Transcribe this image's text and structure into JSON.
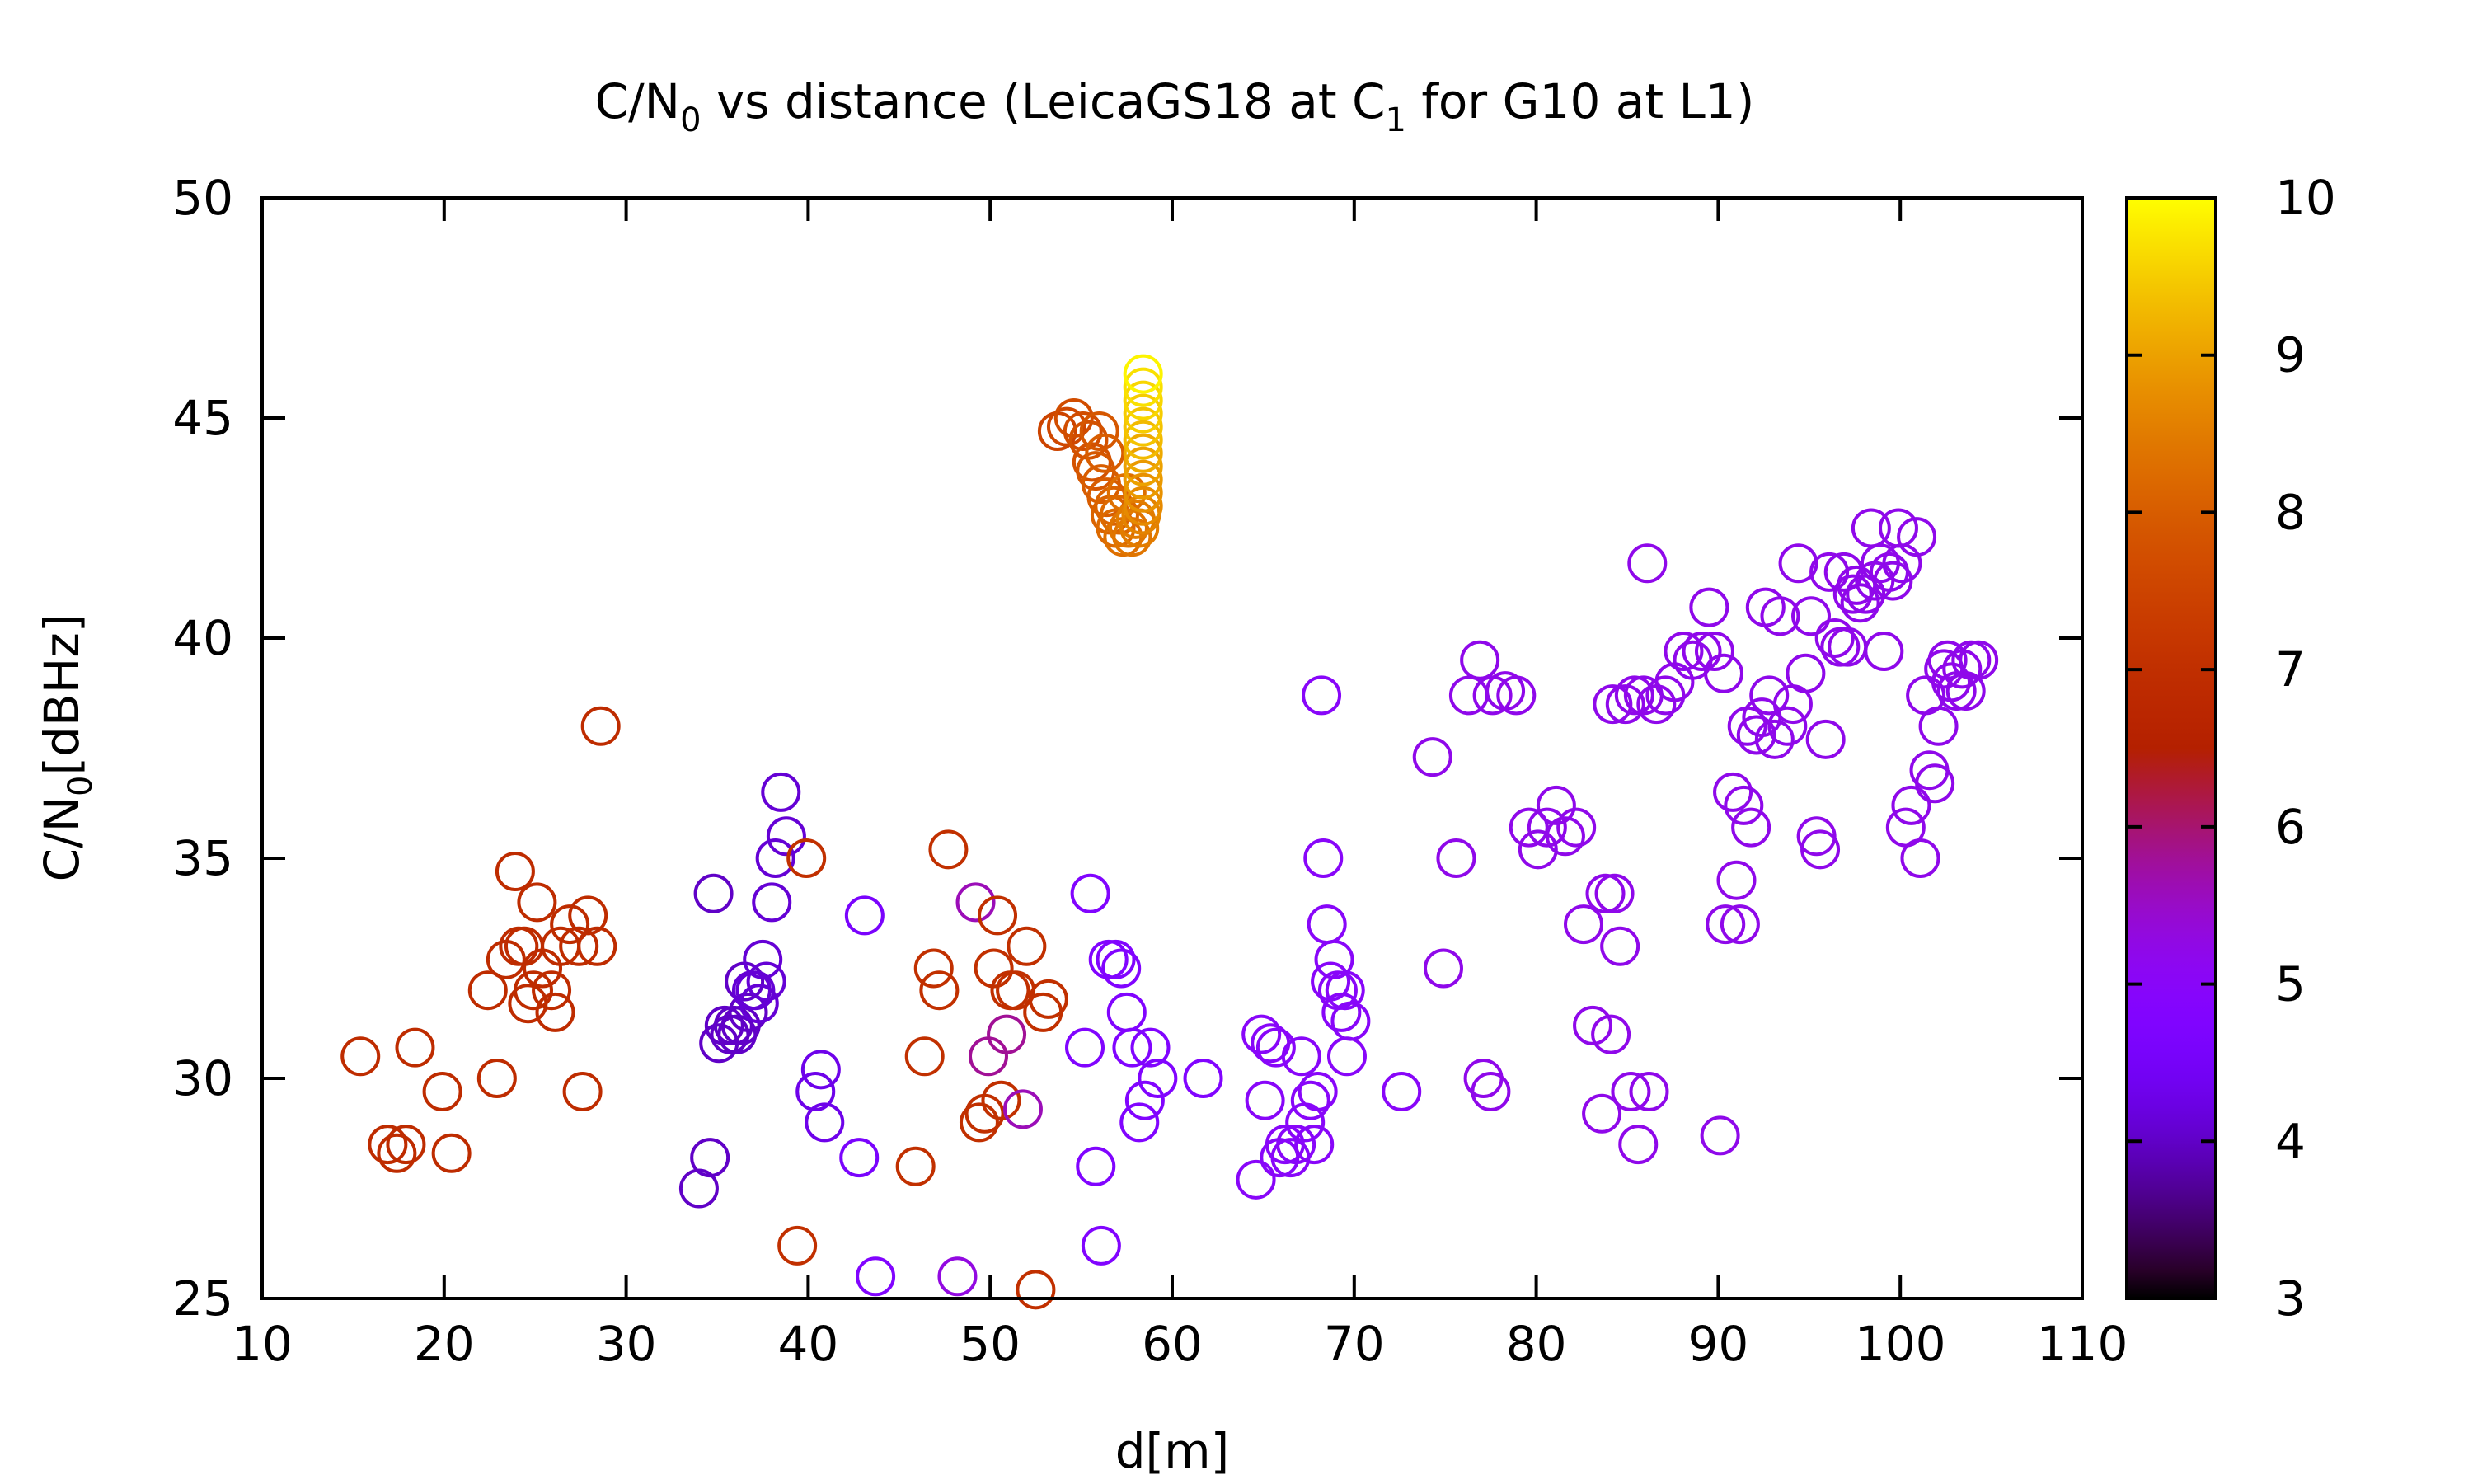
{
  "chart_data": {
    "type": "scatter",
    "title_parts": {
      "a": "C/N",
      "a_sub": "0",
      "b": " vs distance (LeicaGS18 at C",
      "b_sub": "1",
      "c": " for G10 at L1)"
    },
    "xlabel": "d[m]",
    "ylabel_parts": {
      "a": "C/N",
      "a_sub": "0",
      "b": "[dBHz]"
    },
    "xlim": [
      10,
      110
    ],
    "ylim": [
      25,
      50
    ],
    "xticks": [
      "10",
      "20",
      "30",
      "40",
      "50",
      "60",
      "70",
      "80",
      "90",
      "100",
      "110"
    ],
    "yticks": [
      "25",
      "30",
      "35",
      "40",
      "45",
      "50"
    ],
    "colorbar": {
      "range": [
        3,
        10
      ],
      "ticks": [
        "3",
        "4",
        "5",
        "6",
        "7",
        "8",
        "9",
        "10"
      ],
      "palette": "gnuplot"
    },
    "grid": false,
    "marker": "open-circle",
    "points": [
      [
        15.4,
        30.5,
        6.9
      ],
      [
        16.9,
        28.5,
        6.9
      ],
      [
        17.4,
        28.3,
        6.9
      ],
      [
        17.9,
        28.5,
        6.9
      ],
      [
        18.4,
        30.7,
        6.9
      ],
      [
        19.9,
        29.7,
        6.9
      ],
      [
        20.4,
        28.3,
        6.9
      ],
      [
        22.4,
        32.0,
        6.9
      ],
      [
        22.9,
        30.0,
        6.9
      ],
      [
        23.4,
        32.7,
        6.9
      ],
      [
        23.9,
        34.7,
        6.9
      ],
      [
        24.1,
        33.0,
        6.9
      ],
      [
        24.4,
        33.0,
        6.9
      ],
      [
        24.6,
        31.7,
        6.9
      ],
      [
        24.9,
        32.0,
        6.9
      ],
      [
        25.1,
        34.0,
        6.9
      ],
      [
        25.4,
        32.5,
        6.9
      ],
      [
        25.9,
        32.0,
        6.9
      ],
      [
        26.1,
        31.5,
        6.9
      ],
      [
        26.4,
        33.0,
        6.9
      ],
      [
        26.9,
        33.5,
        6.9
      ],
      [
        27.4,
        33.0,
        6.9
      ],
      [
        27.6,
        29.7,
        6.9
      ],
      [
        27.9,
        33.7,
        6.9
      ],
      [
        28.4,
        33.0,
        6.9
      ],
      [
        28.6,
        38.0,
        6.9
      ],
      [
        34.0,
        27.5,
        4.0
      ],
      [
        34.6,
        28.2,
        4.0
      ],
      [
        34.8,
        34.2,
        4.0
      ],
      [
        35.1,
        30.8,
        4.0
      ],
      [
        35.4,
        31.2,
        4.0
      ],
      [
        35.7,
        31.0,
        4.0
      ],
      [
        35.9,
        31.2,
        4.0
      ],
      [
        36.1,
        31.0,
        4.0
      ],
      [
        36.3,
        31.2,
        4.0
      ],
      [
        36.5,
        32.2,
        4.0
      ],
      [
        36.7,
        31.5,
        4.0
      ],
      [
        36.9,
        32.0,
        4.1
      ],
      [
        37.1,
        32.0,
        4.1
      ],
      [
        37.3,
        31.7,
        4.1
      ],
      [
        37.5,
        32.7,
        4.1
      ],
      [
        37.7,
        32.2,
        4.1
      ],
      [
        38.0,
        34.0,
        4.1
      ],
      [
        38.2,
        35.0,
        4.1
      ],
      [
        38.5,
        36.5,
        4.1
      ],
      [
        38.8,
        35.5,
        4.1
      ],
      [
        40.4,
        29.7,
        4.3
      ],
      [
        40.7,
        30.2,
        4.3
      ],
      [
        40.9,
        29.0,
        4.3
      ],
      [
        42.8,
        28.2,
        4.6
      ],
      [
        43.1,
        33.7,
        4.6
      ],
      [
        43.7,
        25.5,
        4.8
      ],
      [
        39.4,
        26.2,
        7.0
      ],
      [
        39.9,
        35.0,
        7.0
      ],
      [
        45.9,
        28.0,
        7.0
      ],
      [
        46.4,
        30.5,
        7.0
      ],
      [
        46.9,
        32.5,
        7.0
      ],
      [
        47.2,
        32.0,
        7.0
      ],
      [
        47.7,
        35.2,
        7.0
      ],
      [
        48.2,
        25.5,
        5.3
      ],
      [
        49.2,
        34.0,
        5.6
      ],
      [
        49.4,
        29.0,
        7.0
      ],
      [
        49.7,
        29.2,
        7.0
      ],
      [
        49.9,
        30.5,
        5.8
      ],
      [
        50.2,
        32.5,
        7.0
      ],
      [
        50.4,
        33.7,
        7.0
      ],
      [
        50.6,
        29.5,
        7.0
      ],
      [
        50.9,
        31.0,
        5.8
      ],
      [
        51.1,
        32.0,
        7.0
      ],
      [
        51.4,
        32.0,
        7.0
      ],
      [
        51.8,
        29.3,
        5.6
      ],
      [
        52.0,
        33.0,
        7.0
      ],
      [
        52.5,
        25.2,
        7.0
      ],
      [
        52.9,
        31.5,
        7.0
      ],
      [
        53.2,
        31.8,
        7.0
      ],
      [
        55.2,
        30.7,
        4.8
      ],
      [
        55.5,
        34.2,
        4.8
      ],
      [
        55.8,
        28.0,
        4.8
      ],
      [
        56.1,
        26.2,
        4.8
      ],
      [
        56.5,
        32.7,
        4.8
      ],
      [
        56.9,
        32.7,
        4.8
      ],
      [
        57.2,
        32.5,
        4.8
      ],
      [
        57.5,
        31.5,
        4.8
      ],
      [
        57.8,
        30.7,
        4.8
      ],
      [
        58.2,
        29.0,
        4.8
      ],
      [
        58.5,
        29.5,
        4.8
      ],
      [
        58.8,
        30.7,
        4.8
      ],
      [
        59.2,
        30.0,
        4.8
      ],
      [
        61.7,
        30.0,
        4.8
      ],
      [
        64.6,
        27.7,
        5.0
      ],
      [
        64.9,
        31.0,
        5.0
      ],
      [
        65.1,
        29.5,
        5.0
      ],
      [
        65.4,
        30.8,
        5.0
      ],
      [
        65.7,
        30.7,
        5.0
      ],
      [
        65.9,
        28.2,
        5.0
      ],
      [
        66.2,
        28.5,
        5.0
      ],
      [
        66.5,
        28.2,
        5.0
      ],
      [
        66.8,
        28.5,
        5.0
      ],
      [
        67.1,
        30.5,
        5.0
      ],
      [
        67.3,
        29.0,
        5.0
      ],
      [
        67.6,
        29.5,
        5.0
      ],
      [
        67.8,
        28.5,
        5.0
      ],
      [
        68.0,
        29.7,
        5.0
      ],
      [
        68.2,
        38.7,
        5.0
      ],
      [
        68.3,
        35.0,
        5.0
      ],
      [
        68.5,
        33.5,
        5.0
      ],
      [
        68.7,
        32.2,
        5.0
      ],
      [
        68.9,
        32.7,
        5.0
      ],
      [
        69.1,
        32.0,
        5.0
      ],
      [
        69.3,
        31.5,
        5.0
      ],
      [
        69.5,
        32.0,
        5.0
      ],
      [
        69.6,
        30.5,
        5.0
      ],
      [
        69.8,
        31.3,
        5.0
      ],
      [
        72.6,
        29.7,
        5.0
      ],
      [
        74.3,
        37.3,
        5.2
      ],
      [
        74.9,
        32.5,
        5.2
      ],
      [
        75.6,
        35.0,
        5.2
      ],
      [
        76.3,
        38.7,
        5.2
      ],
      [
        76.9,
        39.5,
        5.2
      ],
      [
        77.1,
        30.0,
        5.2
      ],
      [
        77.5,
        29.7,
        5.2
      ],
      [
        77.6,
        38.7,
        5.2
      ],
      [
        78.3,
        38.8,
        5.2
      ],
      [
        78.9,
        38.7,
        5.2
      ],
      [
        79.6,
        35.7,
        5.2
      ],
      [
        80.1,
        35.2,
        5.2
      ],
      [
        80.6,
        35.7,
        5.2
      ],
      [
        81.1,
        36.2,
        5.2
      ],
      [
        81.6,
        35.5,
        5.2
      ],
      [
        82.2,
        35.7,
        5.2
      ],
      [
        82.6,
        33.5,
        5.2
      ],
      [
        83.1,
        31.2,
        5.2
      ],
      [
        83.6,
        29.2,
        5.2
      ],
      [
        83.8,
        34.2,
        5.2
      ],
      [
        84.1,
        31.0,
        5.2
      ],
      [
        84.3,
        34.2,
        5.2
      ],
      [
        84.6,
        33.0,
        5.2
      ],
      [
        84.2,
        38.5,
        5.2
      ],
      [
        84.9,
        38.5,
        5.2
      ],
      [
        85.2,
        29.7,
        5.2
      ],
      [
        85.6,
        28.5,
        5.2
      ],
      [
        85.4,
        38.7,
        5.2
      ],
      [
        85.9,
        38.7,
        5.2
      ],
      [
        86.1,
        41.7,
        5.2
      ],
      [
        86.2,
        29.7,
        5.2
      ],
      [
        86.6,
        38.5,
        5.2
      ],
      [
        87.1,
        38.7,
        5.2
      ],
      [
        87.6,
        39.0,
        5.2
      ],
      [
        88.1,
        39.7,
        5.2
      ],
      [
        88.6,
        39.5,
        5.2
      ],
      [
        89.1,
        39.7,
        5.2
      ],
      [
        89.5,
        40.7,
        5.2
      ],
      [
        89.8,
        39.7,
        5.2
      ],
      [
        90.1,
        28.7,
        5.2
      ],
      [
        90.3,
        39.2,
        5.2
      ],
      [
        90.4,
        33.5,
        5.2
      ],
      [
        90.8,
        36.5,
        5.2
      ],
      [
        91.0,
        34.5,
        5.2
      ],
      [
        91.2,
        33.5,
        5.2
      ],
      [
        91.4,
        36.2,
        5.2
      ],
      [
        91.6,
        38.0,
        5.2
      ],
      [
        91.8,
        35.7,
        5.2
      ],
      [
        92.1,
        37.8,
        5.2
      ],
      [
        92.4,
        38.2,
        5.2
      ],
      [
        92.6,
        40.7,
        5.2
      ],
      [
        92.8,
        38.7,
        5.2
      ],
      [
        93.1,
        37.7,
        5.2
      ],
      [
        93.4,
        40.5,
        5.2
      ],
      [
        93.8,
        38.0,
        5.2
      ],
      [
        94.1,
        38.5,
        5.2
      ],
      [
        94.4,
        41.7,
        5.2
      ],
      [
        94.8,
        39.2,
        5.2
      ],
      [
        95.1,
        40.5,
        5.2
      ],
      [
        95.4,
        35.5,
        5.2
      ],
      [
        95.6,
        35.2,
        5.2
      ],
      [
        95.9,
        37.7,
        5.2
      ],
      [
        96.1,
        41.5,
        5.2
      ],
      [
        96.4,
        40.0,
        5.2
      ],
      [
        96.7,
        39.8,
        5.2
      ],
      [
        96.9,
        41.5,
        5.2
      ],
      [
        97.1,
        39.8,
        5.2
      ],
      [
        97.4,
        41.0,
        5.2
      ],
      [
        97.6,
        41.2,
        5.2
      ],
      [
        97.8,
        40.8,
        5.2
      ],
      [
        98.1,
        41.0,
        5.2
      ],
      [
        98.4,
        42.5,
        5.2
      ],
      [
        98.6,
        41.3,
        5.2
      ],
      [
        98.9,
        41.7,
        5.2
      ],
      [
        99.1,
        39.7,
        5.2
      ],
      [
        99.4,
        41.5,
        5.2
      ],
      [
        99.6,
        41.3,
        5.2
      ],
      [
        99.9,
        42.5,
        5.2
      ],
      [
        100.1,
        41.7,
        5.2
      ],
      [
        100.3,
        35.7,
        5.2
      ],
      [
        100.6,
        36.2,
        5.2
      ],
      [
        100.9,
        42.3,
        5.2
      ],
      [
        101.1,
        35.0,
        5.2
      ],
      [
        101.4,
        38.7,
        5.2
      ],
      [
        101.6,
        37.0,
        5.2
      ],
      [
        101.9,
        36.7,
        5.2
      ],
      [
        102.1,
        38.0,
        5.2
      ],
      [
        102.4,
        39.3,
        5.2
      ],
      [
        102.6,
        39.5,
        5.2
      ],
      [
        102.8,
        39.0,
        5.2
      ],
      [
        103.1,
        38.8,
        5.2
      ],
      [
        103.4,
        39.3,
        5.2
      ],
      [
        103.6,
        38.8,
        5.2
      ],
      [
        103.9,
        39.5,
        5.2
      ],
      [
        104.3,
        39.5,
        5.2
      ],
      [
        53.7,
        44.7,
        7.5
      ],
      [
        54.2,
        44.8,
        7.6
      ],
      [
        54.6,
        45.0,
        7.7
      ],
      [
        55.1,
        44.7,
        7.7
      ],
      [
        55.4,
        44.5,
        7.8
      ],
      [
        55.6,
        44.0,
        7.8
      ],
      [
        55.8,
        43.8,
        7.9
      ],
      [
        56.0,
        44.7,
        7.9
      ],
      [
        56.1,
        43.5,
        8.0
      ],
      [
        56.3,
        44.2,
        8.0
      ],
      [
        56.4,
        43.2,
        8.0
      ],
      [
        56.6,
        42.8,
        8.1
      ],
      [
        56.8,
        43.0,
        8.1
      ],
      [
        56.9,
        42.5,
        8.2
      ],
      [
        57.1,
        42.8,
        8.2
      ],
      [
        57.3,
        42.3,
        8.3
      ],
      [
        57.5,
        43.3,
        8.3
      ],
      [
        57.6,
        42.5,
        8.4
      ],
      [
        57.8,
        42.3,
        8.4
      ],
      [
        58.0,
        42.7,
        8.5
      ],
      [
        58.2,
        42.5,
        8.5
      ],
      [
        58.3,
        42.8,
        8.6
      ],
      [
        58.4,
        43.0,
        8.7
      ],
      [
        58.4,
        43.3,
        8.8
      ],
      [
        58.4,
        43.6,
        8.9
      ],
      [
        58.4,
        43.9,
        9.0
      ],
      [
        58.4,
        44.2,
        9.1
      ],
      [
        58.4,
        44.5,
        9.3
      ],
      [
        58.4,
        44.8,
        9.4
      ],
      [
        58.4,
        45.1,
        9.5
      ],
      [
        58.4,
        45.4,
        9.6
      ],
      [
        58.4,
        45.7,
        9.7
      ],
      [
        58.4,
        46.0,
        9.9
      ]
    ]
  }
}
